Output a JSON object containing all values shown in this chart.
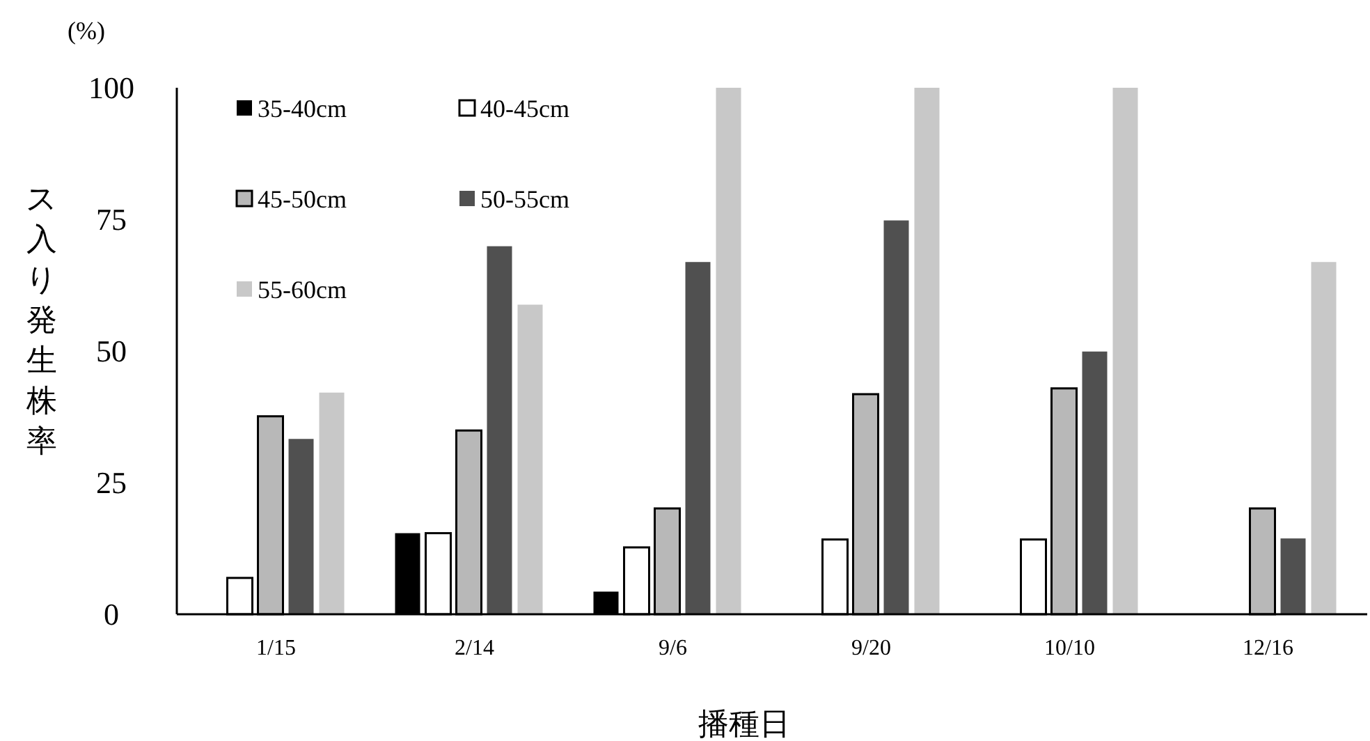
{
  "chart_data": {
    "type": "bar",
    "xlabel": "播種日",
    "ylabel": "ス入り発生株率",
    "annotations": [
      "(%)"
    ],
    "categories": [
      "1/15",
      "2/14",
      "9/6",
      "9/20",
      "10/10",
      "12/16"
    ],
    "series": [
      {
        "name": "35-40cm",
        "color": "#000000",
        "values": [
          0,
          15.4,
          4.3,
          0,
          0,
          0
        ]
      },
      {
        "name": "40-45cm",
        "color": "#ffffff",
        "values": [
          6.9,
          15.4,
          12.7,
          14.2,
          14.2,
          0
        ]
      },
      {
        "name": "45-50cm",
        "color": "#b8b8b8",
        "values": [
          37.6,
          34.9,
          20.1,
          41.8,
          42.9,
          20.1
        ]
      },
      {
        "name": "50-55cm",
        "color": "#505050",
        "values": [
          33.3,
          69.9,
          66.9,
          74.8,
          49.9,
          14.4
        ]
      },
      {
        "name": "55-60cm",
        "color": "#c8c8c8",
        "values": [
          42.1,
          58.8,
          100,
          100,
          100,
          66.9
        ]
      }
    ],
    "ylim": [
      0,
      100
    ],
    "yticks": [
      0,
      25,
      50,
      75,
      100
    ],
    "grid": false,
    "legend": "top left"
  }
}
